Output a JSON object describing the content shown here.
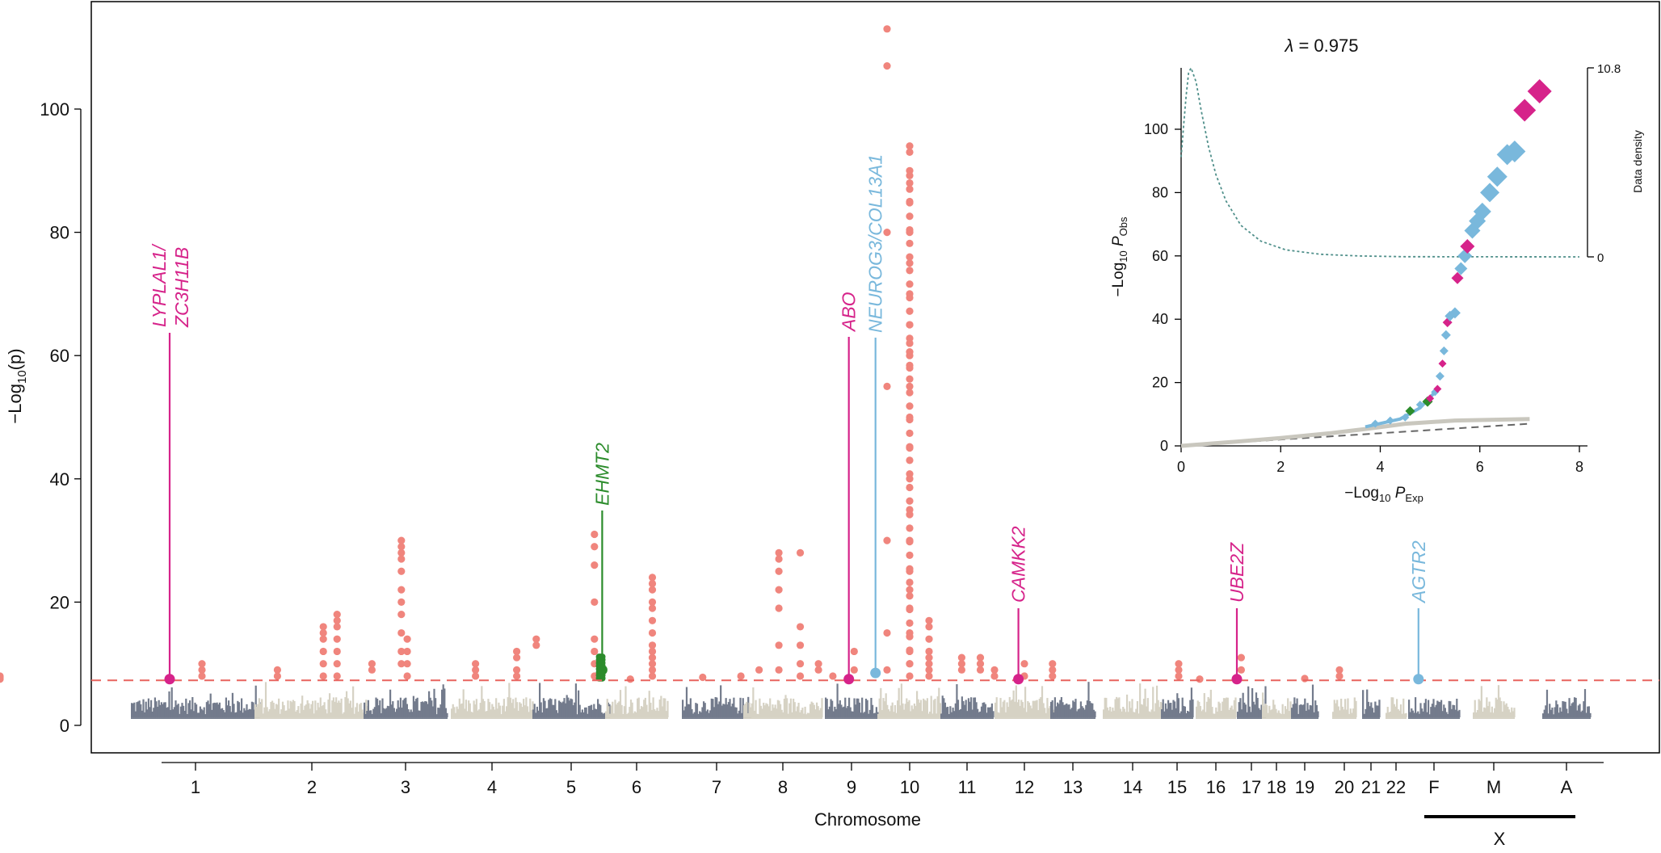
{
  "chart_data": [
    {
      "type": "scatter",
      "subtype": "manhattan",
      "xlabel": "Chromosome",
      "ylabel_main": "−Log",
      "ylabel_sub": "10",
      "ylabel_tail": "(p)",
      "ylim": [
        0,
        115
      ],
      "yticks": [
        0,
        20,
        40,
        60,
        80,
        100
      ],
      "significance_threshold": 7.3,
      "chromosomes": [
        "1",
        "2",
        "3",
        "4",
        "5",
        "6",
        "7",
        "8",
        "9",
        "10",
        "11",
        "12",
        "13",
        "14",
        "15",
        "16",
        "17",
        "18",
        "19",
        "20",
        "21",
        "22",
        "F",
        "M",
        "A"
      ],
      "x_group_label": "X",
      "colors": {
        "dark": "#737b8c",
        "light": "#d6d2c4",
        "hit": "#f0857d",
        "threshold": "#e8635e",
        "magenta": "#d6238a",
        "blue": "#79b8dc",
        "green": "#2c8c2c"
      },
      "hit_columns": [
        {
          "chrom_pos": 0.55,
          "values": [
            7.5,
            8,
            7.8
          ]
        },
        {
          "chrom_pos": 1.55,
          "values": [
            8,
            9,
            10
          ]
        },
        {
          "chrom_pos": 2.2,
          "values": [
            8,
            9
          ]
        },
        {
          "chrom_pos": 2.6,
          "values": [
            8,
            10,
            12,
            14,
            15,
            16
          ]
        },
        {
          "chrom_pos": 2.72,
          "values": [
            8,
            10,
            12,
            14,
            16,
            17,
            18
          ]
        },
        {
          "chrom_pos": 3.1,
          "values": [
            9,
            10
          ]
        },
        {
          "chrom_pos": 3.45,
          "values": [
            10,
            12,
            15,
            18,
            20,
            22,
            25,
            27,
            28,
            29,
            30
          ]
        },
        {
          "chrom_pos": 3.52,
          "values": [
            8,
            10,
            12,
            14
          ]
        },
        {
          "chrom_pos": 4.3,
          "values": [
            8,
            9,
            10
          ]
        },
        {
          "chrom_pos": 4.8,
          "values": [
            8,
            9,
            11,
            12
          ]
        },
        {
          "chrom_pos": 5.05,
          "values": [
            13,
            14
          ]
        },
        {
          "chrom_pos": 5.8,
          "values": [
            8,
            10,
            12,
            14,
            20,
            26,
            29,
            31
          ]
        },
        {
          "chrom_pos": 6.4,
          "values": [
            7.5
          ]
        },
        {
          "chrom_pos": 6.75,
          "values": [
            8,
            9,
            10,
            11,
            12,
            13,
            15,
            17,
            19,
            20,
            22,
            23,
            24
          ]
        },
        {
          "chrom_pos": 7.3,
          "values": [
            7.8
          ]
        },
        {
          "chrom_pos": 7.85,
          "values": [
            8
          ]
        },
        {
          "chrom_pos": 8.2,
          "values": [
            9
          ]
        },
        {
          "chrom_pos": 8.45,
          "values": [
            9,
            13,
            19,
            22,
            25,
            27,
            28
          ]
        },
        {
          "chrom_pos": 8.72,
          "values": [
            8,
            10,
            13,
            16,
            28
          ]
        },
        {
          "chrom_pos": 8.95,
          "values": [
            9,
            10
          ]
        },
        {
          "chrom_pos": 9.15,
          "values": [
            8
          ]
        },
        {
          "chrom_pos": 9.55,
          "values": [
            9,
            12
          ]
        },
        {
          "chrom_pos": 10.15,
          "values": [
            9,
            15,
            30,
            55,
            80,
            107,
            113
          ]
        },
        {
          "chrom_pos": 10.5,
          "values": [
            8,
            10,
            12,
            15,
            19,
            22,
            25,
            30,
            35,
            40,
            45,
            50,
            55,
            58,
            60,
            62,
            65,
            70,
            75,
            80,
            85,
            88,
            90,
            93,
            94
          ]
        },
        {
          "chrom_pos": 10.8,
          "values": [
            8,
            9,
            10,
            11,
            12,
            14,
            16,
            17
          ]
        },
        {
          "chrom_pos": 11.4,
          "values": [
            9,
            10,
            11
          ]
        },
        {
          "chrom_pos": 11.75,
          "values": [
            9,
            10,
            11
          ]
        },
        {
          "chrom_pos": 12.0,
          "values": [
            8,
            9
          ]
        },
        {
          "chrom_pos": 12.5,
          "values": [
            8,
            10
          ]
        },
        {
          "chrom_pos": 13.05,
          "values": [
            8,
            9,
            10
          ]
        },
        {
          "chrom_pos": 15.55,
          "values": [
            8,
            9,
            10
          ]
        },
        {
          "chrom_pos": 16.1,
          "values": [
            7.5
          ]
        },
        {
          "chrom_pos": 17.15,
          "values": [
            9,
            11
          ]
        },
        {
          "chrom_pos": 19.5,
          "values": [
            7.6
          ]
        },
        {
          "chrom_pos": 20.3,
          "values": [
            8,
            9
          ]
        }
      ],
      "annotations": [
        {
          "gene": "LYPLAL1/",
          "gene2": "ZC3H11B",
          "chrom_pos": 1.3,
          "value": 7.5,
          "color": "#d6238a"
        },
        {
          "gene": "EHMT2",
          "gene2": "",
          "chrom_pos": 5.9,
          "value": 9,
          "color": "#2c8c2c"
        },
        {
          "gene": "ABO",
          "gene2": "",
          "chrom_pos": 9.45,
          "value": 7.5,
          "color": "#d6238a"
        },
        {
          "gene": "NEUROG3/COL13A1",
          "gene2": "",
          "chrom_pos": 9.95,
          "value": 8.5,
          "color": "#79b8dc"
        },
        {
          "gene": "CAMKK2",
          "gene2": "",
          "chrom_pos": 12.4,
          "value": 7.5,
          "color": "#d6238a"
        },
        {
          "gene": "UBE2Z",
          "gene2": "",
          "chrom_pos": 17.0,
          "value": 7.5,
          "color": "#d6238a"
        },
        {
          "gene": "AGTR2",
          "gene2": "",
          "chrom_pos": 23.2,
          "value": 7.5,
          "color": "#79b8dc"
        }
      ]
    },
    {
      "type": "scatter",
      "subtype": "qq-plot",
      "title_symbol": "λ",
      "title_value": " = 0.975",
      "xlabel_main": "−Log",
      "xlabel_sub": "10",
      "xlabel_var": " P",
      "xlabel_varsub": "Exp",
      "ylabel_main": "−Log",
      "ylabel_sub": "10",
      "ylabel_var": " P",
      "ylabel_varsub": "Obs",
      "right_label": "Data density",
      "right_ticks": [
        "10.8",
        "0"
      ],
      "xlim": [
        0,
        8
      ],
      "ylim": [
        0,
        117
      ],
      "xticks": [
        0,
        2,
        4,
        6,
        8
      ],
      "yticks": [
        0,
        20,
        40,
        60,
        80,
        100
      ],
      "density_ylim": [
        0,
        10.8
      ],
      "density_curve": [
        [
          0,
          5.7
        ],
        [
          0.05,
          7.5
        ],
        [
          0.1,
          9.2
        ],
        [
          0.15,
          10.5
        ],
        [
          0.2,
          10.8
        ],
        [
          0.3,
          10.0
        ],
        [
          0.4,
          8.4
        ],
        [
          0.55,
          6.3
        ],
        [
          0.7,
          4.7
        ],
        [
          0.9,
          3.2
        ],
        [
          1.2,
          1.8
        ],
        [
          1.6,
          0.9
        ],
        [
          2.1,
          0.4
        ],
        [
          2.8,
          0.15
        ],
        [
          3.6,
          0.05
        ],
        [
          4.5,
          0.01
        ],
        [
          8,
          0
        ]
      ],
      "null_line": [
        [
          0,
          0
        ],
        [
          7,
          7
        ]
      ],
      "gray_series": [
        [
          0,
          0
        ],
        [
          1,
          1.2
        ],
        [
          2,
          2.5
        ],
        [
          3,
          4
        ],
        [
          3.8,
          5.5
        ],
        [
          4.5,
          7
        ],
        [
          5.5,
          8
        ],
        [
          7,
          8.5
        ]
      ],
      "points": [
        {
          "x": 3.9,
          "y": 7,
          "c": "blue",
          "s": 1
        },
        {
          "x": 4.2,
          "y": 8,
          "c": "blue",
          "s": 1
        },
        {
          "x": 4.5,
          "y": 9,
          "c": "blue",
          "s": 1
        },
        {
          "x": 4.6,
          "y": 11,
          "c": "green",
          "s": 1.2
        },
        {
          "x": 4.8,
          "y": 13,
          "c": "blue",
          "s": 1
        },
        {
          "x": 4.95,
          "y": 14,
          "c": "green",
          "s": 1.3
        },
        {
          "x": 5.0,
          "y": 15,
          "c": "magenta",
          "s": 1
        },
        {
          "x": 5.1,
          "y": 17,
          "c": "blue",
          "s": 1
        },
        {
          "x": 5.15,
          "y": 18,
          "c": "magenta",
          "s": 1
        },
        {
          "x": 5.2,
          "y": 22,
          "c": "blue",
          "s": 1.1
        },
        {
          "x": 5.25,
          "y": 26,
          "c": "magenta",
          "s": 1
        },
        {
          "x": 5.28,
          "y": 30,
          "c": "blue",
          "s": 1.1
        },
        {
          "x": 5.32,
          "y": 35,
          "c": "blue",
          "s": 1.2
        },
        {
          "x": 5.35,
          "y": 39,
          "c": "magenta",
          "s": 1.2
        },
        {
          "x": 5.4,
          "y": 41,
          "c": "blue",
          "s": 1.3
        },
        {
          "x": 5.5,
          "y": 42,
          "c": "blue",
          "s": 1.4
        },
        {
          "x": 5.55,
          "y": 53,
          "c": "magenta",
          "s": 1.5
        },
        {
          "x": 5.62,
          "y": 56,
          "c": "blue",
          "s": 1.6
        },
        {
          "x": 5.7,
          "y": 60,
          "c": "blue",
          "s": 1.8
        },
        {
          "x": 5.75,
          "y": 63,
          "c": "magenta",
          "s": 1.8
        },
        {
          "x": 5.85,
          "y": 68,
          "c": "blue",
          "s": 2.0
        },
        {
          "x": 5.95,
          "y": 71,
          "c": "blue",
          "s": 2.1
        },
        {
          "x": 6.05,
          "y": 74,
          "c": "blue",
          "s": 2.2
        },
        {
          "x": 6.2,
          "y": 80,
          "c": "blue",
          "s": 2.4
        },
        {
          "x": 6.35,
          "y": 85,
          "c": "blue",
          "s": 2.5
        },
        {
          "x": 6.55,
          "y": 92,
          "c": "blue",
          "s": 2.6
        },
        {
          "x": 6.7,
          "y": 93,
          "c": "blue",
          "s": 2.7
        },
        {
          "x": 6.9,
          "y": 106,
          "c": "magenta",
          "s": 2.8
        },
        {
          "x": 7.2,
          "y": 112,
          "c": "magenta",
          "s": 3.0
        }
      ]
    }
  ]
}
